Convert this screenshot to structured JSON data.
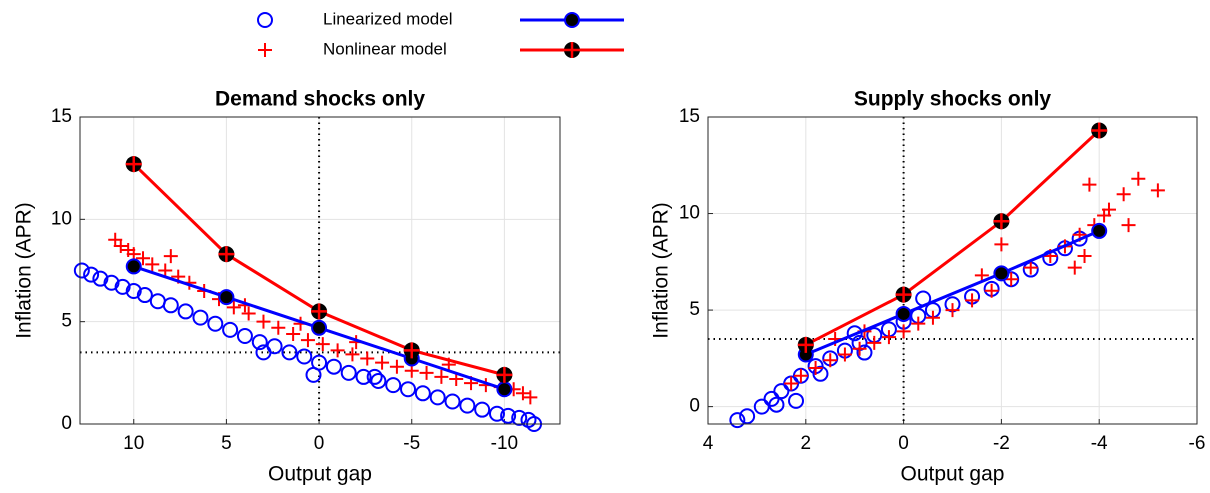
{
  "chart_data": [
    {
      "type": "scatter",
      "title": "Demand shocks only",
      "x_label": "Output gap",
      "y_label": "Inflation (APR)",
      "xlim": [
        12.9,
        -13
      ],
      "ylim": [
        0,
        15
      ],
      "xticks": [
        10,
        5,
        0,
        -5,
        -10
      ],
      "yticks": [
        0,
        5,
        10,
        15
      ],
      "grid": true,
      "legend": "top",
      "reference_lines": {
        "x": 0,
        "y": 3.5
      },
      "series": [
        {
          "name": "Linearized model",
          "color": "#0000ff",
          "marker": "o",
          "line": false,
          "x": [
            12.8,
            12.3,
            11.8,
            11.2,
            10.6,
            10,
            9.4,
            8.7,
            8,
            7.2,
            6.4,
            5.6,
            4.8,
            4,
            3.2,
            2.4,
            1.6,
            0.8,
            0,
            -0.8,
            -1.6,
            -2.4,
            -3.2,
            -4,
            -4.8,
            -5.6,
            -6.4,
            -7.2,
            -8,
            -8.8,
            -9.6,
            -10.2,
            -10.8,
            -11.3,
            -11.6,
            3,
            -3,
            0.3
          ],
          "values": [
            7.5,
            7.3,
            7.1,
            6.9,
            6.7,
            6.5,
            6.3,
            6.0,
            5.8,
            5.5,
            5.2,
            4.9,
            4.6,
            4.3,
            4.0,
            3.8,
            3.5,
            3.3,
            3.0,
            2.8,
            2.5,
            2.3,
            2.1,
            1.9,
            1.7,
            1.5,
            1.3,
            1.1,
            0.9,
            0.7,
            0.5,
            0.4,
            0.3,
            0.2,
            0.0,
            3.5,
            2.3,
            2.4
          ]
        },
        {
          "name": "Nonlinear model",
          "color": "#ff0000",
          "marker": "+",
          "line": false,
          "x": [
            11,
            10.7,
            10.3,
            10,
            9.5,
            9,
            8.3,
            7.6,
            7,
            6.2,
            5.4,
            4.6,
            3.8,
            3,
            2.2,
            1.4,
            0.6,
            -0.2,
            -1,
            -1.8,
            -2.6,
            -3.4,
            -4.2,
            -5,
            -5.8,
            -6.6,
            -7.4,
            -8.2,
            -9,
            -9.8,
            -10.5,
            -11,
            -11.4,
            8,
            4,
            -2,
            -7,
            1
          ],
          "values": [
            9.0,
            8.7,
            8.5,
            8.3,
            8.1,
            7.8,
            7.5,
            7.2,
            6.9,
            6.5,
            6.1,
            5.7,
            5.4,
            5.0,
            4.7,
            4.4,
            4.1,
            3.9,
            3.6,
            3.4,
            3.2,
            3.0,
            2.8,
            2.6,
            2.5,
            2.3,
            2.2,
            2.0,
            1.9,
            1.8,
            1.7,
            1.5,
            1.3,
            8.2,
            5.8,
            4.0,
            2.9,
            4.9
          ]
        },
        {
          "color": "#0000ff",
          "marker": "o",
          "marker_face": "#000000",
          "line": true,
          "x": [
            10,
            5,
            0,
            -5,
            -10
          ],
          "values": [
            7.7,
            6.2,
            4.7,
            3.2,
            1.7
          ]
        },
        {
          "color": "#ff0000",
          "marker": "o+",
          "marker_face": "#000000",
          "line": true,
          "x": [
            10,
            5,
            0,
            -5,
            -10
          ],
          "values": [
            12.7,
            8.3,
            5.5,
            3.6,
            2.4
          ]
        }
      ]
    },
    {
      "type": "scatter",
      "title": "Supply shocks only",
      "x_label": "Output gap",
      "y_label": "Inflation (APR)",
      "xlim": [
        4,
        -6
      ],
      "ylim": [
        -0.9,
        15
      ],
      "xticks": [
        4,
        2,
        0,
        -2,
        -4,
        -6
      ],
      "yticks": [
        0,
        5,
        10,
        15
      ],
      "grid": true,
      "reference_lines": {
        "x": 0,
        "y": 3.5
      },
      "series": [
        {
          "color": "#0000ff",
          "marker": "o",
          "line": false,
          "x": [
            3.4,
            3.2,
            2.9,
            2.7,
            2.5,
            2.3,
            2.1,
            1.8,
            1.5,
            1.2,
            0.9,
            0.6,
            0.3,
            0,
            -0.3,
            -0.6,
            -1,
            -1.4,
            -1.8,
            -2.2,
            -2.6,
            -3,
            -3.3,
            -3.6,
            2.6,
            1.7,
            0.8,
            -0.4,
            2.2,
            1.0
          ],
          "values": [
            -0.7,
            -0.5,
            0.0,
            0.4,
            0.8,
            1.2,
            1.6,
            2.1,
            2.5,
            2.9,
            3.3,
            3.7,
            4.0,
            4.4,
            4.7,
            5.0,
            5.3,
            5.7,
            6.1,
            6.6,
            7.1,
            7.7,
            8.2,
            8.7,
            0.1,
            1.7,
            2.8,
            5.6,
            0.3,
            3.8
          ]
        },
        {
          "color": "#ff0000",
          "marker": "+",
          "line": false,
          "x": [
            2.3,
            2.1,
            1.8,
            1.5,
            1.2,
            0.9,
            0.6,
            0.3,
            0,
            -0.3,
            -0.6,
            -1,
            -1.4,
            -1.8,
            -2.2,
            -2.6,
            -3,
            -3.3,
            -3.6,
            -3.9,
            -4.2,
            -4.5,
            -4.8,
            -5.2,
            -3.8,
            -4.1,
            -4.6,
            -2,
            -1.6,
            0.8,
            1.4,
            -3.5,
            -3.7
          ],
          "values": [
            1.2,
            1.6,
            2.0,
            2.4,
            2.7,
            3.0,
            3.3,
            3.6,
            3.9,
            4.3,
            4.6,
            5.0,
            5.5,
            6.0,
            6.6,
            7.2,
            7.8,
            8.3,
            8.9,
            9.4,
            10.2,
            11.0,
            11.8,
            11.2,
            11.5,
            9.9,
            9.4,
            8.4,
            6.8,
            3.9,
            3.5,
            7.2,
            7.8
          ]
        },
        {
          "color": "#0000ff",
          "marker": "o",
          "marker_face": "#000000",
          "line": true,
          "x": [
            2,
            0,
            -2,
            -4
          ],
          "values": [
            2.7,
            4.8,
            6.9,
            9.1
          ]
        },
        {
          "color": "#ff0000",
          "marker": "o+",
          "marker_face": "#000000",
          "line": true,
          "x": [
            2,
            0,
            -2,
            -4
          ],
          "values": [
            3.2,
            5.8,
            9.6,
            14.3
          ]
        }
      ]
    }
  ]
}
